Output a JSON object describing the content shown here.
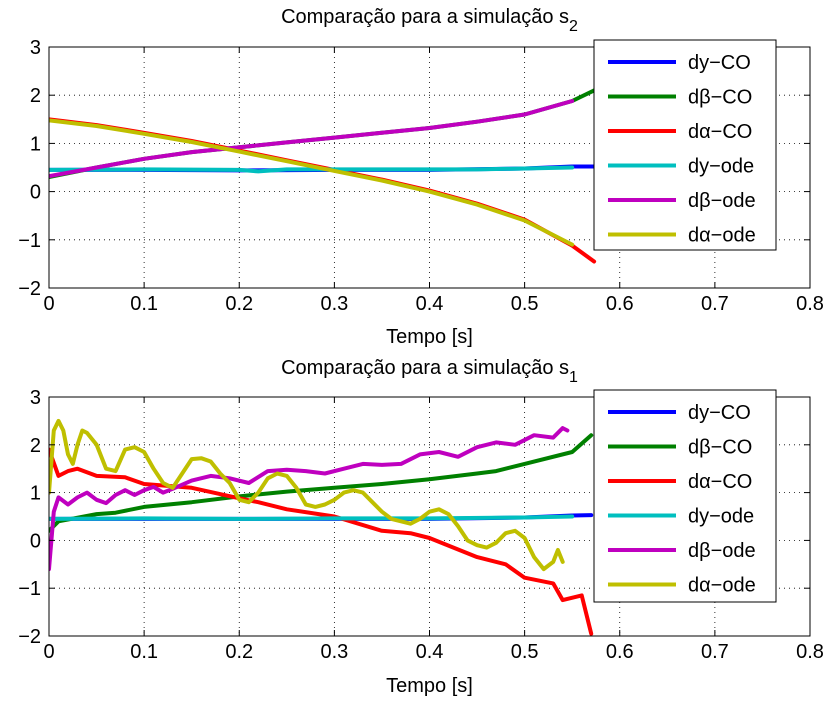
{
  "chart_data": [
    {
      "type": "line",
      "title": "Comparação para a simulação s",
      "title_subscript": "2",
      "xlabel": "Tempo [s]",
      "ylabel": "",
      "xlim": [
        0,
        0.8
      ],
      "ylim": [
        -2,
        3
      ],
      "xticks": [
        "0",
        "0.1",
        "0.2",
        "0.3",
        "0.4",
        "0.5",
        "0.6",
        "0.7",
        "0.8"
      ],
      "yticks": [
        "3",
        "2",
        "1",
        "0",
        "−1",
        "−2"
      ],
      "grid": true,
      "legend_position": "top-right",
      "series": [
        {
          "name": "dy−CO",
          "color": "#0000ff",
          "points": [
            [
              0,
              0.45
            ],
            [
              0.1,
              0.45
            ],
            [
              0.2,
              0.44
            ],
            [
              0.3,
              0.45
            ],
            [
              0.4,
              0.45
            ],
            [
              0.5,
              0.48
            ],
            [
              0.55,
              0.52
            ],
            [
              0.573,
              0.52
            ]
          ]
        },
        {
          "name": "dβ−CO",
          "color": "#008000",
          "points": [
            [
              0,
              0.3
            ],
            [
              0.05,
              0.5
            ],
            [
              0.1,
              0.68
            ],
            [
              0.15,
              0.82
            ],
            [
              0.2,
              0.92
            ],
            [
              0.25,
              1.02
            ],
            [
              0.3,
              1.12
            ],
            [
              0.35,
              1.22
            ],
            [
              0.4,
              1.32
            ],
            [
              0.45,
              1.45
            ],
            [
              0.5,
              1.6
            ],
            [
              0.55,
              1.88
            ],
            [
              0.573,
              2.1
            ]
          ]
        },
        {
          "name": "dα−CO",
          "color": "#ff0000",
          "points": [
            [
              0,
              1.5
            ],
            [
              0.05,
              1.38
            ],
            [
              0.1,
              1.22
            ],
            [
              0.15,
              1.05
            ],
            [
              0.2,
              0.85
            ],
            [
              0.25,
              0.65
            ],
            [
              0.3,
              0.45
            ],
            [
              0.35,
              0.25
            ],
            [
              0.4,
              0.02
            ],
            [
              0.45,
              -0.25
            ],
            [
              0.5,
              -0.58
            ],
            [
              0.55,
              -1.12
            ],
            [
              0.573,
              -1.45
            ]
          ]
        },
        {
          "name": "dy−ode",
          "color": "#00bfbf",
          "points": [
            [
              0,
              0.45
            ],
            [
              0.1,
              0.46
            ],
            [
              0.2,
              0.45
            ],
            [
              0.22,
              0.42
            ],
            [
              0.25,
              0.46
            ],
            [
              0.3,
              0.46
            ],
            [
              0.4,
              0.46
            ],
            [
              0.45,
              0.46
            ],
            [
              0.5,
              0.48
            ],
            [
              0.55,
              0.5
            ]
          ]
        },
        {
          "name": "dβ−ode",
          "color": "#bf00bf",
          "points": [
            [
              0,
              0.32
            ],
            [
              0.05,
              0.5
            ],
            [
              0.1,
              0.68
            ],
            [
              0.15,
              0.82
            ],
            [
              0.2,
              0.92
            ],
            [
              0.25,
              1.02
            ],
            [
              0.3,
              1.12
            ],
            [
              0.35,
              1.22
            ],
            [
              0.4,
              1.32
            ],
            [
              0.45,
              1.45
            ],
            [
              0.5,
              1.6
            ],
            [
              0.55,
              1.88
            ]
          ]
        },
        {
          "name": "dα−ode",
          "color": "#bfbf00",
          "points": [
            [
              0,
              1.48
            ],
            [
              0.05,
              1.36
            ],
            [
              0.1,
              1.2
            ],
            [
              0.15,
              1.03
            ],
            [
              0.2,
              0.83
            ],
            [
              0.25,
              0.63
            ],
            [
              0.3,
              0.43
            ],
            [
              0.35,
              0.23
            ],
            [
              0.4,
              0.0
            ],
            [
              0.45,
              -0.27
            ],
            [
              0.5,
              -0.6
            ],
            [
              0.55,
              -1.1
            ]
          ]
        }
      ]
    },
    {
      "type": "line",
      "title": "Comparação para a simulação s",
      "title_subscript": "1",
      "xlabel": "Tempo [s]",
      "ylabel": "",
      "xlim": [
        0,
        0.8
      ],
      "ylim": [
        -2,
        3
      ],
      "xticks": [
        "0",
        "0.1",
        "0.2",
        "0.3",
        "0.4",
        "0.5",
        "0.6",
        "0.7",
        "0.8"
      ],
      "yticks": [
        "3",
        "2",
        "1",
        "0",
        "−1",
        "−2"
      ],
      "grid": true,
      "legend_position": "top-right",
      "series": [
        {
          "name": "dy−CO",
          "color": "#0000ff",
          "points": [
            [
              0,
              0.45
            ],
            [
              0.1,
              0.45
            ],
            [
              0.2,
              0.45
            ],
            [
              0.3,
              0.45
            ],
            [
              0.4,
              0.45
            ],
            [
              0.5,
              0.48
            ],
            [
              0.55,
              0.52
            ],
            [
              0.57,
              0.53
            ]
          ]
        },
        {
          "name": "dβ−CO",
          "color": "#008000",
          "points": [
            [
              0,
              0.2
            ],
            [
              0.01,
              0.4
            ],
            [
              0.05,
              0.55
            ],
            [
              0.07,
              0.58
            ],
            [
              0.1,
              0.7
            ],
            [
              0.15,
              0.8
            ],
            [
              0.2,
              0.92
            ],
            [
              0.25,
              1.02
            ],
            [
              0.3,
              1.1
            ],
            [
              0.35,
              1.18
            ],
            [
              0.4,
              1.28
            ],
            [
              0.45,
              1.4
            ],
            [
              0.47,
              1.45
            ],
            [
              0.5,
              1.6
            ],
            [
              0.55,
              1.85
            ],
            [
              0.57,
              2.2
            ]
          ]
        },
        {
          "name": "dα−CO",
          "color": "#ff0000",
          "points": [
            [
              0,
              1.9
            ],
            [
              0.01,
              1.35
            ],
            [
              0.02,
              1.45
            ],
            [
              0.03,
              1.5
            ],
            [
              0.05,
              1.35
            ],
            [
              0.08,
              1.32
            ],
            [
              0.1,
              1.18
            ],
            [
              0.15,
              1.1
            ],
            [
              0.2,
              0.88
            ],
            [
              0.22,
              0.8
            ],
            [
              0.25,
              0.65
            ],
            [
              0.3,
              0.5
            ],
            [
              0.32,
              0.38
            ],
            [
              0.35,
              0.2
            ],
            [
              0.38,
              0.15
            ],
            [
              0.4,
              0.05
            ],
            [
              0.45,
              -0.35
            ],
            [
              0.48,
              -0.5
            ],
            [
              0.5,
              -0.78
            ],
            [
              0.53,
              -0.9
            ],
            [
              0.54,
              -1.25
            ],
            [
              0.56,
              -1.15
            ],
            [
              0.57,
              -1.95
            ]
          ]
        },
        {
          "name": "dy−ode",
          "color": "#00bfbf",
          "points": [
            [
              0,
              0.45
            ],
            [
              0.1,
              0.46
            ],
            [
              0.2,
              0.45
            ],
            [
              0.3,
              0.46
            ],
            [
              0.4,
              0.46
            ],
            [
              0.5,
              0.48
            ],
            [
              0.55,
              0.5
            ]
          ]
        },
        {
          "name": "dβ−ode",
          "color": "#bf00bf",
          "points": [
            [
              0,
              -0.6
            ],
            [
              0.005,
              0.6
            ],
            [
              0.01,
              0.9
            ],
            [
              0.02,
              0.75
            ],
            [
              0.03,
              0.9
            ],
            [
              0.04,
              1.0
            ],
            [
              0.05,
              0.85
            ],
            [
              0.06,
              0.78
            ],
            [
              0.07,
              0.95
            ],
            [
              0.08,
              1.05
            ],
            [
              0.09,
              0.95
            ],
            [
              0.1,
              1.05
            ],
            [
              0.11,
              1.12
            ],
            [
              0.12,
              1.0
            ],
            [
              0.13,
              1.08
            ],
            [
              0.15,
              1.25
            ],
            [
              0.17,
              1.35
            ],
            [
              0.19,
              1.3
            ],
            [
              0.21,
              1.2
            ],
            [
              0.23,
              1.45
            ],
            [
              0.25,
              1.48
            ],
            [
              0.27,
              1.45
            ],
            [
              0.29,
              1.4
            ],
            [
              0.31,
              1.5
            ],
            [
              0.33,
              1.6
            ],
            [
              0.35,
              1.58
            ],
            [
              0.37,
              1.6
            ],
            [
              0.39,
              1.8
            ],
            [
              0.41,
              1.85
            ],
            [
              0.43,
              1.75
            ],
            [
              0.45,
              1.95
            ],
            [
              0.47,
              2.05
            ],
            [
              0.49,
              2.0
            ],
            [
              0.51,
              2.2
            ],
            [
              0.53,
              2.15
            ],
            [
              0.54,
              2.35
            ],
            [
              0.545,
              2.3
            ]
          ]
        },
        {
          "name": "dα−ode",
          "color": "#bfbf00",
          "points": [
            [
              0,
              1.0
            ],
            [
              0.005,
              2.3
            ],
            [
              0.01,
              2.5
            ],
            [
              0.015,
              2.3
            ],
            [
              0.02,
              1.8
            ],
            [
              0.025,
              1.6
            ],
            [
              0.03,
              2.0
            ],
            [
              0.035,
              2.3
            ],
            [
              0.04,
              2.25
            ],
            [
              0.05,
              2.0
            ],
            [
              0.06,
              1.5
            ],
            [
              0.07,
              1.45
            ],
            [
              0.08,
              1.9
            ],
            [
              0.09,
              1.95
            ],
            [
              0.1,
              1.85
            ],
            [
              0.11,
              1.5
            ],
            [
              0.12,
              1.2
            ],
            [
              0.13,
              1.1
            ],
            [
              0.14,
              1.4
            ],
            [
              0.15,
              1.7
            ],
            [
              0.16,
              1.72
            ],
            [
              0.17,
              1.65
            ],
            [
              0.18,
              1.4
            ],
            [
              0.19,
              1.2
            ],
            [
              0.2,
              0.85
            ],
            [
              0.21,
              0.8
            ],
            [
              0.22,
              1.0
            ],
            [
              0.23,
              1.3
            ],
            [
              0.24,
              1.4
            ],
            [
              0.25,
              1.35
            ],
            [
              0.26,
              1.1
            ],
            [
              0.27,
              0.75
            ],
            [
              0.28,
              0.7
            ],
            [
              0.29,
              0.75
            ],
            [
              0.3,
              0.85
            ],
            [
              0.31,
              1.0
            ],
            [
              0.32,
              1.05
            ],
            [
              0.33,
              1.0
            ],
            [
              0.34,
              0.8
            ],
            [
              0.35,
              0.6
            ],
            [
              0.36,
              0.45
            ],
            [
              0.37,
              0.4
            ],
            [
              0.38,
              0.35
            ],
            [
              0.39,
              0.45
            ],
            [
              0.4,
              0.6
            ],
            [
              0.41,
              0.65
            ],
            [
              0.42,
              0.55
            ],
            [
              0.43,
              0.3
            ],
            [
              0.44,
              0.0
            ],
            [
              0.45,
              -0.1
            ],
            [
              0.46,
              -0.15
            ],
            [
              0.47,
              -0.05
            ],
            [
              0.48,
              0.15
            ],
            [
              0.49,
              0.2
            ],
            [
              0.5,
              0.05
            ],
            [
              0.51,
              -0.35
            ],
            [
              0.52,
              -0.6
            ],
            [
              0.53,
              -0.45
            ],
            [
              0.535,
              -0.2
            ],
            [
              0.54,
              -0.45
            ]
          ]
        }
      ]
    }
  ]
}
